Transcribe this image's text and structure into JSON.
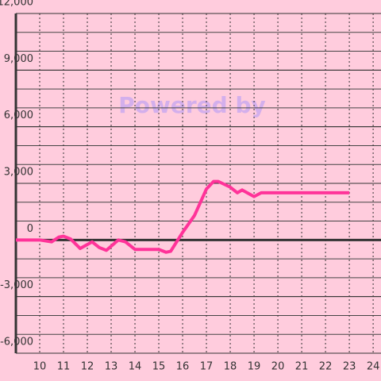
{
  "chart_data": {
    "type": "line",
    "watermark": "Powered by",
    "x": [
      9,
      10,
      10.5,
      10.8,
      11,
      11.3,
      11.7,
      12.2,
      12.5,
      12.8,
      13.3,
      13.6,
      14,
      15,
      15.3,
      15.5,
      16,
      16.5,
      17,
      17.3,
      17.5,
      18,
      18.3,
      18.5,
      19,
      19.3,
      20,
      23
    ],
    "series": [
      {
        "color": "#ff3399",
        "values": [
          0,
          0,
          -100,
          150,
          200,
          50,
          -450,
          -100,
          -400,
          -550,
          0,
          -100,
          -500,
          -500,
          -650,
          -600,
          400,
          1300,
          2700,
          3100,
          3100,
          2800,
          2500,
          2650,
          2300,
          2500,
          2500,
          2500
        ]
      }
    ],
    "xlim": [
      9,
      24.33
    ],
    "xticks": [
      10,
      11,
      12,
      13,
      14,
      15,
      16,
      17,
      18,
      19,
      20,
      21,
      22,
      23,
      24
    ],
    "ylim": [
      -6000,
      12000
    ],
    "yticks": [
      {
        "value": -6000,
        "label": "-6,000"
      },
      {
        "value": -3000,
        "label": "-3,000"
      },
      0,
      {
        "value": 3000,
        "label": "3,000"
      },
      {
        "value": 6000,
        "label": "6,000"
      },
      {
        "value": 9000,
        "label": "9,000"
      },
      {
        "value": 12000,
        "label": "12,000"
      }
    ],
    "minor_step": 1000,
    "grid": true
  }
}
